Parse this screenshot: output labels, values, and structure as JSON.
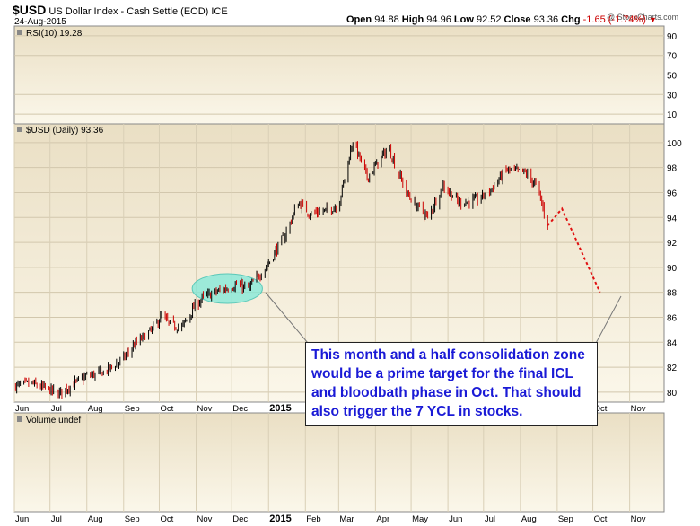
{
  "header": {
    "symbol": "$USD",
    "description": "US Dollar Index - Cash Settle (EOD)",
    "exchange": "ICE",
    "date": "24-Aug-2015",
    "watermark": "@ StockCharts.com",
    "open_label": "Open",
    "open": "94.88",
    "high_label": "High",
    "high": "94.96",
    "low_label": "Low",
    "low": "92.52",
    "close_label": "Close",
    "close": "93.36",
    "chg_label": "Chg",
    "chg": "-1.65 (-1.74%)"
  },
  "colors": {
    "up": "#000000",
    "down": "#cc0000",
    "projection": "#e01010",
    "highlight": "#7fe8d8",
    "callout_text": "#1a1ad6"
  },
  "chart_data": [
    {
      "type": "line",
      "panel": "RSI",
      "legend": "RSI(10) 19.28",
      "y_ticks": [
        10,
        30,
        50,
        70,
        90
      ],
      "ylim": [
        0,
        100
      ],
      "values": []
    },
    {
      "type": "candlestick",
      "panel": "price",
      "legend": "$USD (Daily) 93.36",
      "x_ticks": [
        "Jun",
        "Jul",
        "Aug",
        "Sep",
        "Oct",
        "Nov",
        "Dec",
        "2015",
        "Feb",
        "Mar",
        "Apr",
        "May",
        "Jun",
        "Jul",
        "Aug",
        "Sep",
        "Oct",
        "Nov"
      ],
      "y_ticks": [
        80,
        82,
        84,
        86,
        88,
        90,
        92,
        94,
        96,
        98,
        100
      ],
      "ylim": [
        79.2,
        101.5
      ],
      "xlim": [
        "2014-06-01",
        "2015-11-30"
      ],
      "path_points": [
        [
          "2014-06-02",
          80.5
        ],
        [
          "2014-06-15",
          80.7
        ],
        [
          "2014-06-30",
          80.2
        ],
        [
          "2014-07-08",
          79.9
        ],
        [
          "2014-07-20",
          80.6
        ],
        [
          "2014-08-01",
          81.3
        ],
        [
          "2014-08-15",
          81.6
        ],
        [
          "2014-08-31",
          82.6
        ],
        [
          "2014-09-10",
          83.8
        ],
        [
          "2014-09-25",
          85.0
        ],
        [
          "2014-10-03",
          86.1
        ],
        [
          "2014-10-10",
          85.4
        ],
        [
          "2014-10-20",
          85.2
        ],
        [
          "2014-10-31",
          86.9
        ],
        [
          "2014-11-07",
          87.6
        ],
        [
          "2014-11-20",
          88.1
        ],
        [
          "2014-12-05",
          88.6
        ],
        [
          "2014-12-15",
          88.3
        ],
        [
          "2014-12-31",
          90.2
        ],
        [
          "2015-01-15",
          92.6
        ],
        [
          "2015-01-26",
          95.2
        ],
        [
          "2015-02-05",
          94.3
        ],
        [
          "2015-02-20",
          94.6
        ],
        [
          "2015-03-01",
          95.0
        ],
        [
          "2015-03-13",
          100.2
        ],
        [
          "2015-03-25",
          97.2
        ],
        [
          "2015-04-12",
          99.6
        ],
        [
          "2015-04-28",
          95.8
        ],
        [
          "2015-05-15",
          94.0
        ],
        [
          "2015-05-28",
          96.6
        ],
        [
          "2015-06-10",
          95.2
        ],
        [
          "2015-06-25",
          95.4
        ],
        [
          "2015-07-05",
          96.0
        ],
        [
          "2015-07-20",
          97.8
        ],
        [
          "2015-08-05",
          97.6
        ],
        [
          "2015-08-15",
          96.5
        ],
        [
          "2015-08-24",
          93.36
        ]
      ],
      "projection": [
        [
          "2015-08-24",
          93.36
        ],
        [
          "2015-09-05",
          94.7
        ],
        [
          "2015-10-07",
          88.0
        ]
      ],
      "highlight_zone": {
        "from": "2014-11-03",
        "to": "2014-12-17",
        "low": 87.4,
        "high": 89.2
      }
    },
    {
      "type": "bar",
      "panel": "volume",
      "legend": "Volume undef",
      "values": []
    }
  ],
  "annotation": {
    "text": "This month and a half consolidation zone would be a prime target for the final ICL and bloodbath phase in Oct. That should also trigger the 7 YCL in stocks."
  }
}
